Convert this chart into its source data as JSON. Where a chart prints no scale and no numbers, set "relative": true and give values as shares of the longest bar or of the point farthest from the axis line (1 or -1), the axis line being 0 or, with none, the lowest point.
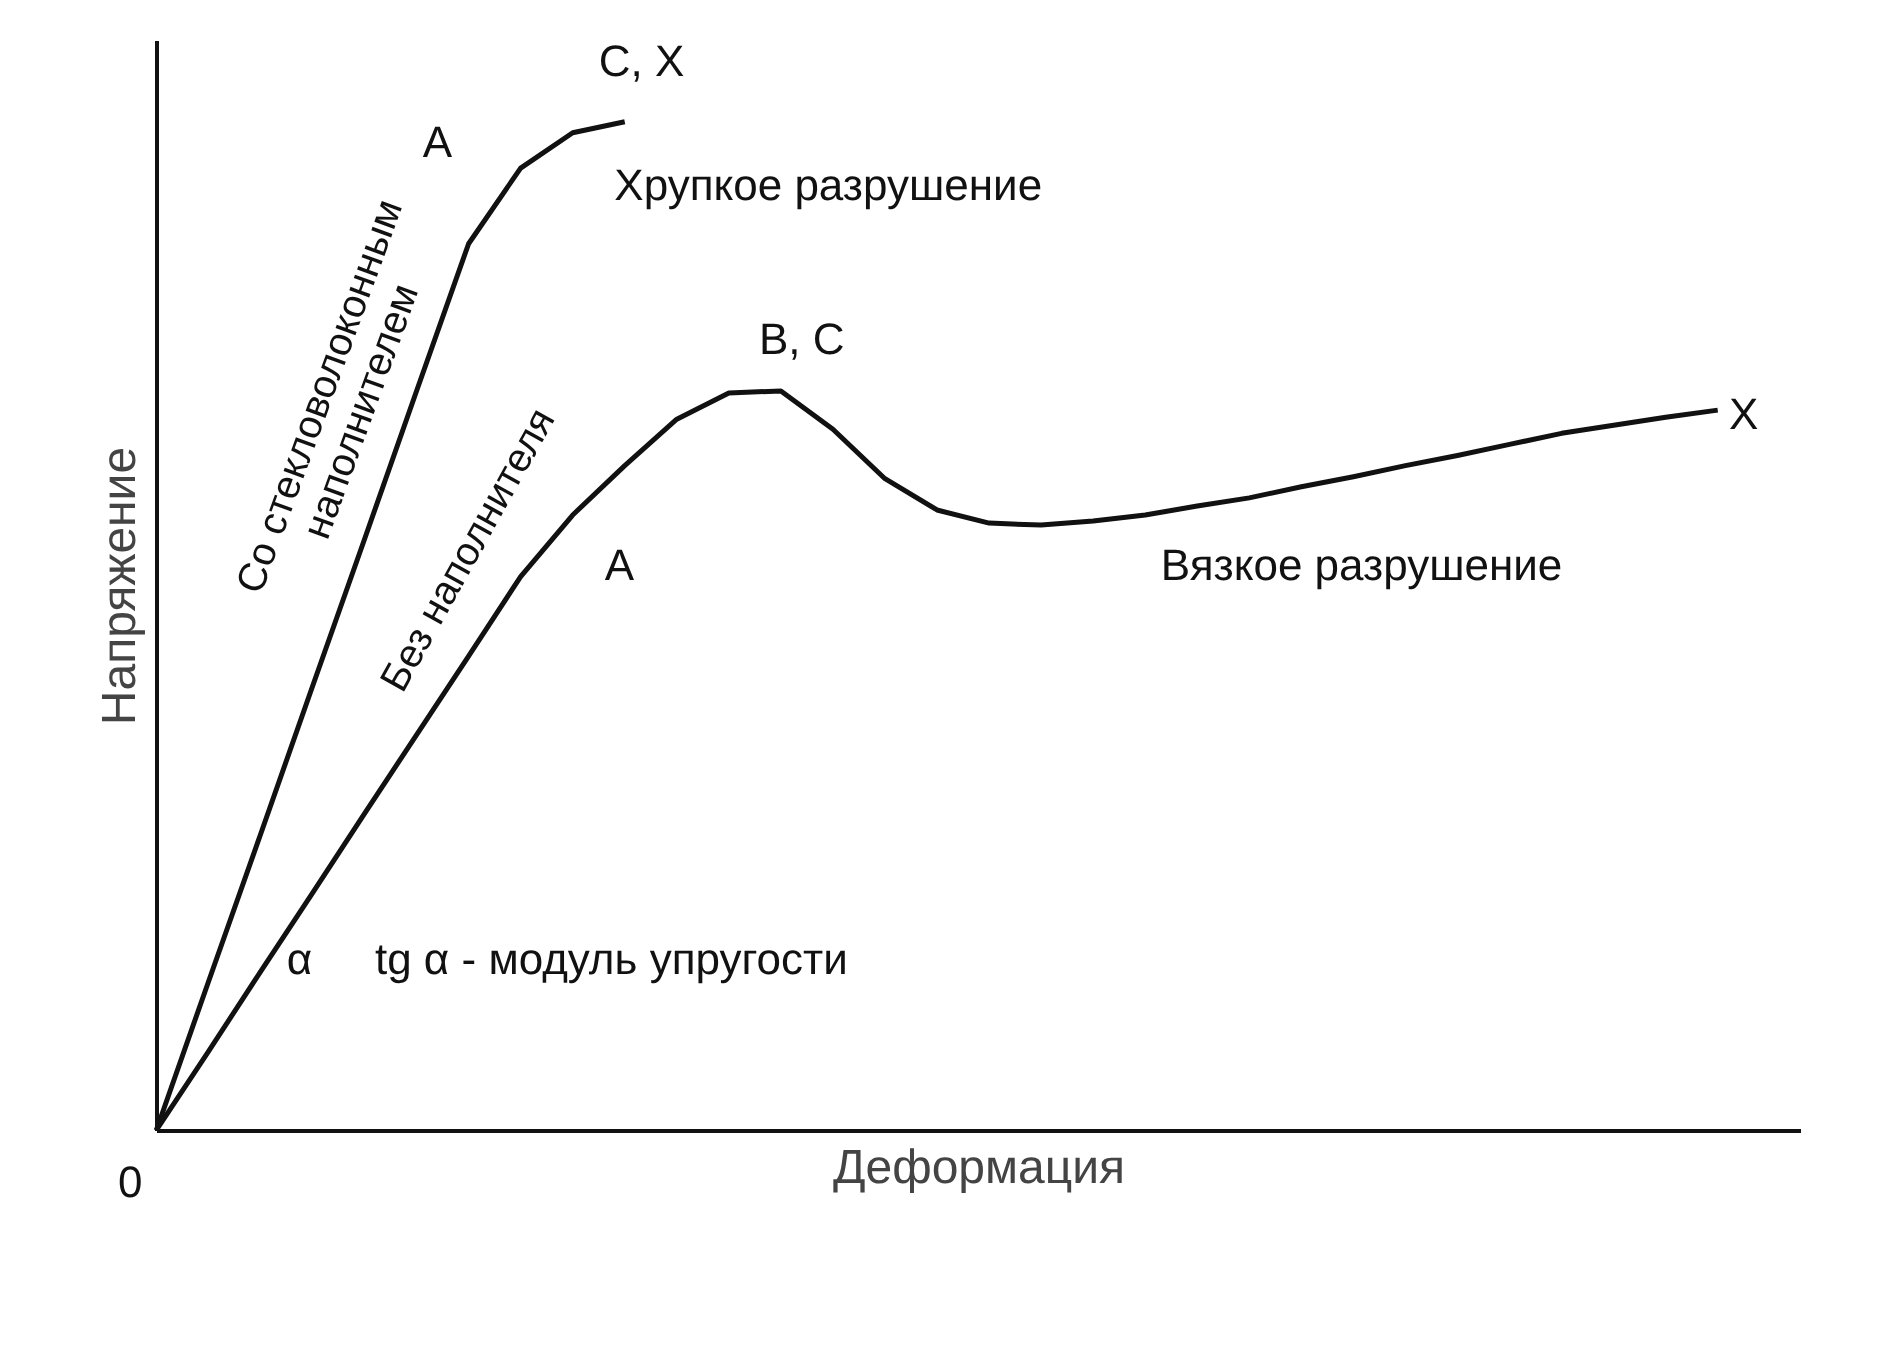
{
  "chart_data": {
    "type": "line",
    "relative": true,
    "xlabel": "Деформация",
    "ylabel": "Напряжение",
    "categories": [
      null,
      null,
      null,
      null,
      null,
      null,
      null,
      null,
      null,
      null,
      null,
      null,
      null,
      null,
      null,
      null,
      null,
      null,
      null,
      null,
      null,
      null,
      null,
      null,
      null,
      null,
      null,
      null,
      null,
      null,
      null
    ],
    "series": [
      {
        "name": "Со стекловолоконным наполнителем",
        "color": "#111111",
        "values": [
          0,
          0.147,
          0.293,
          0.44,
          0.586,
          0.733,
          0.879,
          0.954,
          0.989,
          1.0,
          null,
          null,
          null,
          null,
          null,
          null,
          null,
          null,
          null,
          null,
          null,
          null,
          null,
          null,
          null,
          null,
          null,
          null,
          null,
          null,
          null
        ]
      },
      {
        "name": "Без наполнителя",
        "color": "#111111",
        "values": [
          0,
          0.078,
          0.157,
          0.235,
          0.314,
          0.392,
          0.47,
          0.549,
          0.61,
          0.659,
          0.705,
          0.731,
          0.733,
          0.695,
          0.646,
          0.615,
          0.602,
          0.6,
          0.604,
          0.61,
          0.619,
          0.627,
          0.638,
          0.648,
          0.659,
          0.669,
          0.68,
          0.691,
          0.699,
          0.707,
          0.714
        ]
      }
    ],
    "annotations": [
      "A",
      "C, X",
      "Хрупкое разрушение",
      "B, C",
      "A",
      "X",
      "Вязкое разрушение",
      "α",
      "tg α - модуль упругости",
      "0"
    ]
  }
}
